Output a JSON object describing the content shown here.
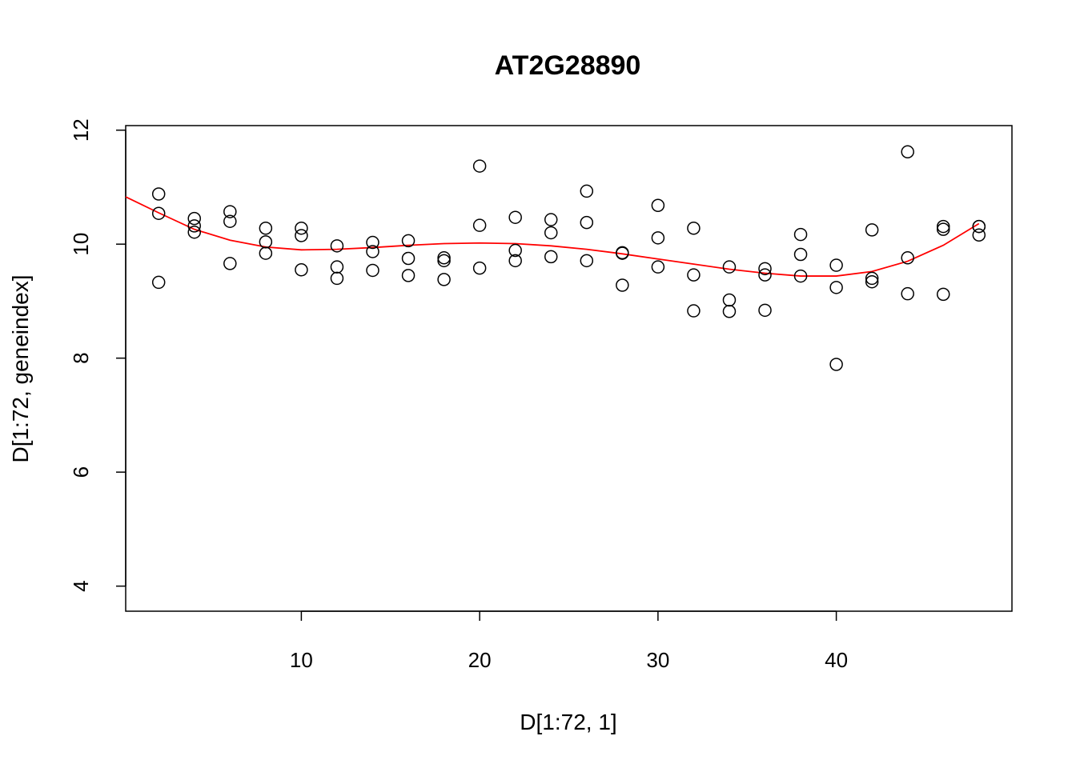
{
  "chart_data": {
    "type": "scatter",
    "title": "AT2G28890",
    "xlabel": "D[1:72, 1]",
    "ylabel": "D[1:72, geneindex]",
    "xlim": [
      0.15,
      49.85
    ],
    "ylim": [
      3.56,
      12.08
    ],
    "xticks": [
      10,
      20,
      30,
      40
    ],
    "xtick_labels": [
      "10",
      "20",
      "30",
      "40"
    ],
    "yticks": [
      4,
      6,
      8,
      10,
      12
    ],
    "ytick_labels": [
      "4",
      "6",
      "8",
      "10",
      "12"
    ],
    "grid": false,
    "legend": "none",
    "point_color": "#000000",
    "curve_color": "#ff0000",
    "series": [
      {
        "type": "scatter",
        "points": [
          [
            2,
            10.88
          ],
          [
            2,
            10.54
          ],
          [
            2,
            9.33
          ],
          [
            4,
            10.45
          ],
          [
            4,
            10.32
          ],
          [
            4,
            10.21
          ],
          [
            6,
            10.57
          ],
          [
            6,
            10.4
          ],
          [
            6,
            9.66
          ],
          [
            8,
            10.28
          ],
          [
            8,
            10.04
          ],
          [
            8,
            9.84
          ],
          [
            10,
            10.28
          ],
          [
            10,
            10.15
          ],
          [
            10,
            9.55
          ],
          [
            12,
            9.97
          ],
          [
            12,
            9.6
          ],
          [
            12,
            9.4
          ],
          [
            14,
            10.03
          ],
          [
            14,
            9.87
          ],
          [
            14,
            9.54
          ],
          [
            16,
            10.06
          ],
          [
            16,
            9.75
          ],
          [
            16,
            9.45
          ],
          [
            18,
            9.76
          ],
          [
            18,
            9.71
          ],
          [
            18,
            9.38
          ],
          [
            20,
            11.37
          ],
          [
            20,
            10.33
          ],
          [
            20,
            9.58
          ],
          [
            22,
            10.47
          ],
          [
            22,
            9.89
          ],
          [
            22,
            9.71
          ],
          [
            24,
            10.43
          ],
          [
            24,
            10.2
          ],
          [
            24,
            9.78
          ],
          [
            26,
            10.93
          ],
          [
            26,
            10.38
          ],
          [
            26,
            9.71
          ],
          [
            28,
            9.85
          ],
          [
            28,
            9.84
          ],
          [
            28,
            9.28
          ],
          [
            30,
            10.68
          ],
          [
            30,
            10.11
          ],
          [
            30,
            9.6
          ],
          [
            32,
            10.28
          ],
          [
            32,
            9.46
          ],
          [
            32,
            8.83
          ],
          [
            34,
            9.6
          ],
          [
            34,
            9.02
          ],
          [
            34,
            8.82
          ],
          [
            36,
            9.57
          ],
          [
            36,
            9.46
          ],
          [
            36,
            8.84
          ],
          [
            38,
            10.17
          ],
          [
            38,
            9.82
          ],
          [
            38,
            9.44
          ],
          [
            40,
            9.63
          ],
          [
            40,
            9.24
          ],
          [
            40,
            7.89
          ],
          [
            42,
            10.25
          ],
          [
            42,
            9.4
          ],
          [
            42,
            9.34
          ],
          [
            44,
            11.62
          ],
          [
            44,
            9.76
          ],
          [
            44,
            9.13
          ],
          [
            46,
            10.31
          ],
          [
            46,
            10.26
          ],
          [
            46,
            9.12
          ],
          [
            48,
            10.31
          ],
          [
            48,
            10.31
          ],
          [
            48,
            10.16
          ]
        ]
      },
      {
        "type": "line",
        "points": [
          [
            0.15,
            10.83
          ],
          [
            2,
            10.55
          ],
          [
            4,
            10.26
          ],
          [
            6,
            10.07
          ],
          [
            8,
            9.95
          ],
          [
            10,
            9.9
          ],
          [
            12,
            9.91
          ],
          [
            14,
            9.94
          ],
          [
            16,
            9.98
          ],
          [
            18,
            10.01
          ],
          [
            20,
            10.02
          ],
          [
            22,
            10.01
          ],
          [
            24,
            9.97
          ],
          [
            26,
            9.91
          ],
          [
            28,
            9.83
          ],
          [
            30,
            9.74
          ],
          [
            32,
            9.65
          ],
          [
            34,
            9.56
          ],
          [
            36,
            9.49
          ],
          [
            38,
            9.44
          ],
          [
            40,
            9.44
          ],
          [
            42,
            9.52
          ],
          [
            44,
            9.7
          ],
          [
            46,
            9.98
          ],
          [
            48,
            10.36
          ]
        ]
      }
    ]
  }
}
